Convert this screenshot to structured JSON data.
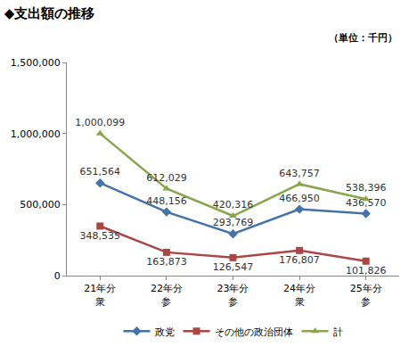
{
  "chart_data": {
    "type": "line",
    "title": "◆支出額の推移",
    "annotations": [
      "（単位：千円）"
    ],
    "categories": [
      "21年分\n衆",
      "22年分\n参",
      "23年分\n参",
      "24年分\n衆",
      "25年分\n参"
    ],
    "series": [
      {
        "name": "政党",
        "color": "#4572a7",
        "marker": "diamond",
        "line_style": "solid",
        "values": [
          651564,
          448156,
          293769,
          466950,
          436570
        ],
        "value_labels": [
          "651,564",
          "448,156",
          "293,769",
          "466,950",
          "436,570"
        ]
      },
      {
        "name": "その他の政治団体",
        "color": "#aa4643",
        "marker": "square",
        "line_style": "solid",
        "values": [
          348535,
          163873,
          126547,
          176807,
          101826
        ],
        "value_labels": [
          "348,535",
          "163,873",
          "126,547",
          "176,807",
          "101,826"
        ]
      },
      {
        "name": "計",
        "color": "#89a54e",
        "marker": "triangle-up",
        "line_style": "solid",
        "values": [
          1000099,
          612029,
          420316,
          643757,
          538396
        ],
        "value_labels": [
          "1,000,099",
          "612,029",
          "420,316",
          "643,757",
          "538,396"
        ]
      }
    ],
    "ylim": [
      0,
      1500000
    ],
    "yticks": [
      0,
      {
        "value": 500000,
        "label": "500,000"
      },
      {
        "value": 1000000,
        "label": "1,000,000"
      },
      {
        "value": 1500000,
        "label": "1,500,000"
      }
    ],
    "grid": false,
    "legend": "bottom",
    "data_labels": true
  }
}
